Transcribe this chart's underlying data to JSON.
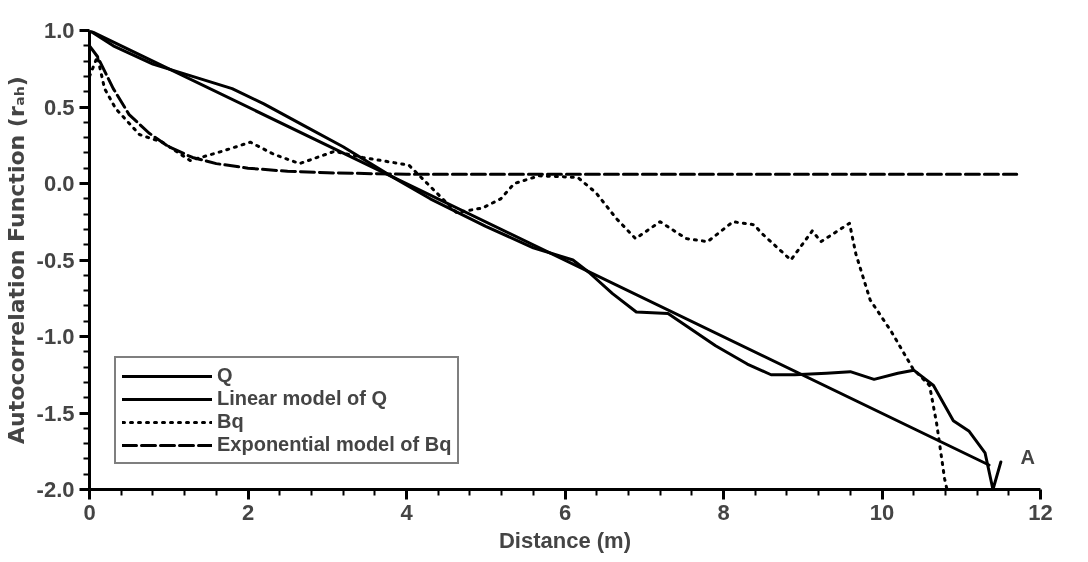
{
  "chart_data": {
    "type": "line",
    "xlabel": "Distance (m)",
    "ylabel": "Autocorrelation Function (rₐₕ)",
    "xlim": [
      0,
      12
    ],
    "ylim": [
      -2.0,
      1.0
    ],
    "xticks": [
      0,
      2,
      4,
      6,
      8,
      10,
      12
    ],
    "yticks": [
      {
        "value": -2,
        "label": "-2.0"
      },
      {
        "value": -1.5,
        "label": "-1.5"
      },
      {
        "value": -1,
        "label": "-1.0"
      },
      {
        "value": -0.5,
        "label": "-0.5"
      },
      {
        "value": 0,
        "label": "0.0"
      },
      {
        "value": 0.5,
        "label": "0.5"
      },
      {
        "value": 1,
        "label": "1.0"
      }
    ],
    "grid": false,
    "legend": "bottom left",
    "marker": "none",
    "annotations": [
      "A"
    ],
    "series": [
      {
        "name": "Q",
        "color": "#000000",
        "line_style": "solid",
        "x": [
          0,
          0.3,
          0.8,
          1.3,
          1.8,
          2.2,
          2.7,
          3.2,
          3.8,
          4.3,
          5.0,
          5.6,
          6.1,
          6.3,
          6.6,
          6.9,
          7.3,
          7.9,
          8.3,
          8.6,
          8.9,
          9.3,
          9.6,
          9.9,
          10.2,
          10.4,
          10.65,
          10.9,
          11.1,
          11.3,
          11.4,
          11.5
        ],
        "values": [
          1.0,
          0.9,
          0.78,
          0.7,
          0.62,
          0.52,
          0.38,
          0.24,
          0.05,
          -0.1,
          -0.28,
          -0.42,
          -0.5,
          -0.58,
          -0.72,
          -0.84,
          -0.85,
          -1.06,
          -1.18,
          -1.25,
          -1.25,
          -1.24,
          -1.23,
          -1.28,
          -1.24,
          -1.22,
          -1.32,
          -1.55,
          -1.62,
          -1.76,
          -2.0,
          -1.82
        ]
      },
      {
        "name": "Linear model of Q",
        "color": "#000000",
        "line_style": "solid",
        "x": [
          0,
          11.35
        ],
        "values": [
          1.0,
          -1.84
        ]
      },
      {
        "name": "Bq",
        "color": "#000000",
        "line_style": "dotted",
        "x": [
          0,
          0.1,
          0.19,
          0.33,
          0.63,
          0.92,
          1.27,
          1.67,
          2.03,
          2.33,
          2.65,
          3.09,
          3.45,
          4.03,
          4.63,
          4.96,
          5.19,
          5.36,
          5.67,
          6.16,
          6.39,
          6.65,
          6.89,
          7.2,
          7.53,
          7.8,
          8.12,
          8.39,
          8.47,
          8.85,
          9.12,
          9.23,
          9.59,
          9.67,
          9.85,
          10.12,
          10.39,
          10.6,
          10.69,
          10.79,
          10.82
        ],
        "values": [
          0.7,
          0.83,
          0.62,
          0.49,
          0.32,
          0.27,
          0.15,
          0.21,
          0.27,
          0.19,
          0.13,
          0.21,
          0.17,
          0.12,
          -0.19,
          -0.16,
          -0.1,
          0.0,
          0.05,
          0.04,
          -0.06,
          -0.23,
          -0.36,
          -0.25,
          -0.36,
          -0.38,
          -0.25,
          -0.27,
          -0.32,
          -0.5,
          -0.31,
          -0.38,
          -0.26,
          -0.46,
          -0.76,
          -0.97,
          -1.21,
          -1.32,
          -1.57,
          -1.93,
          -2.0
        ]
      },
      {
        "name": "Exponential model of Bq",
        "color": "#000000",
        "line_style": "dashed",
        "x": [
          0,
          0.1,
          0.3,
          0.5,
          0.75,
          1.0,
          1.3,
          1.6,
          2.0,
          2.5,
          3.0,
          4.0,
          11.7
        ],
        "values": [
          0.9,
          0.83,
          0.62,
          0.45,
          0.33,
          0.24,
          0.17,
          0.13,
          0.1,
          0.08,
          0.07,
          0.06,
          0.06
        ]
      }
    ]
  }
}
